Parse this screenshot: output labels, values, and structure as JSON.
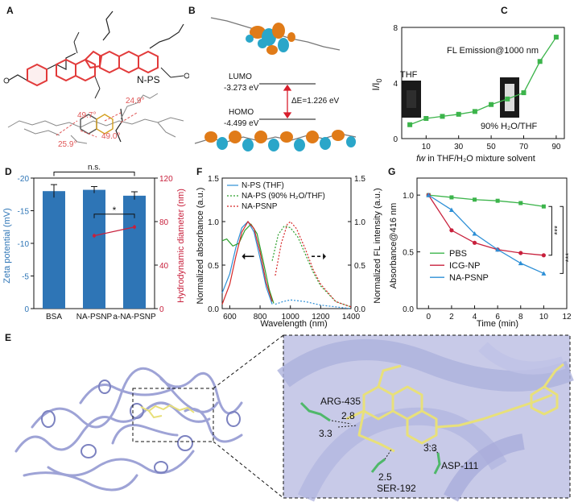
{
  "panels": {
    "A": {
      "letter": "A",
      "molecule_label": "N-PS",
      "angles": [
        "49.7°",
        "24.9°",
        "49.0°",
        "25.9°"
      ],
      "colors": {
        "backbone": "#e23a3a",
        "dihedral": "#e05555"
      }
    },
    "B": {
      "letter": "B",
      "lumo_label": "LUMO",
      "lumo_energy": "-3.273 eV",
      "homo_label": "HOMO",
      "homo_energy": "-4.499 eV",
      "gap_label": "ΔE=1.226 eV",
      "colors": {
        "orbital_a": "#e07b18",
        "orbital_b": "#2aa6c9",
        "gap_arrow": "#d81e2c"
      }
    },
    "C": {
      "letter": "C"
    },
    "D": {
      "letter": "D"
    },
    "E": {
      "letter": "E",
      "residues": [
        "ARG-435",
        "ASP-111",
        "SER-192"
      ],
      "distances": [
        "3.3",
        "2.8",
        "3.3",
        "2.5"
      ],
      "colors": {
        "protein": "#9ea3d6",
        "ligand": "#e8e07a",
        "residue": "#4fb86a"
      }
    },
    "F": {
      "letter": "F"
    },
    "G": {
      "letter": "G"
    }
  },
  "chart_data": [
    {
      "id": "C",
      "type": "line",
      "annotation": "FL Emission@1000 nm",
      "inset_labels": [
        "THF",
        "90% H₂O/THF"
      ],
      "xlabel_parts": [
        "fw",
        " in THF/H₂O mixture solvent"
      ],
      "ylabel_main": "I/I",
      "ylabel_sub": "0",
      "x": [
        0,
        10,
        20,
        30,
        40,
        50,
        60,
        70,
        80,
        90
      ],
      "y": [
        1.0,
        1.45,
        1.6,
        1.75,
        1.95,
        2.45,
        2.85,
        3.3,
        5.55,
        7.3
      ],
      "xticks": [
        10,
        30,
        50,
        70,
        90
      ],
      "yticks": [
        0,
        4,
        8
      ],
      "xlim": [
        -5,
        95
      ],
      "ylim": [
        0,
        8
      ],
      "color": "#3cb44b"
    },
    {
      "id": "D",
      "type": "bar",
      "categories": [
        "BSA",
        "NA-PSNP",
        "a-NA-PSNP"
      ],
      "values": [
        -18.0,
        -18.2,
        -17.3
      ],
      "errors": [
        1.0,
        0.5,
        0.6
      ],
      "ylabel_left": "Zeta potential (mV)",
      "ylim_left": [
        0,
        -20
      ],
      "yticks_left": [
        0,
        -5,
        -10,
        -15,
        -20
      ],
      "ylabel_right": "Hydrodynamic diameter (nm)",
      "ylim_right": [
        0,
        120
      ],
      "yticks_right": [
        0,
        40,
        80,
        120
      ],
      "line_series": {
        "x_categories": [
          "NA-PSNP",
          "a-NA-PSNP"
        ],
        "values": [
          67,
          75
        ],
        "errors": [
          2,
          2
        ]
      },
      "significance": [
        "n.s.",
        "*"
      ],
      "bar_color": "#2e75b6",
      "line_color": "#c8203c"
    },
    {
      "id": "F",
      "type": "line",
      "xlabel": "Wavelength (nm)",
      "ylabel_left": "Normalized absorbance (a.u.)",
      "ylabel_right": "Normalized FL intensity (a.u.)",
      "xlim": [
        550,
        1400
      ],
      "xticks": [
        600,
        800,
        1000,
        1200,
        1400
      ],
      "ylim_left": [
        0,
        1.5
      ],
      "yticks_left": [
        0.0,
        0.5,
        1.0,
        1.5
      ],
      "ylim_right": [
        0,
        1.5
      ],
      "yticks_right": [
        0.0,
        0.5,
        1.0,
        1.5
      ],
      "legend": [
        "N-PS (THF)",
        "NA-PS (90% H₂O/THF)",
        "NA-PSNP"
      ],
      "series": [
        {
          "name": "N-PS (THF)",
          "color": "#2d8fd6",
          "abs_x": [
            550,
            600,
            640,
            680,
            720,
            760,
            800,
            840,
            880
          ],
          "abs_y": [
            0.18,
            0.4,
            0.7,
            0.93,
            1.0,
            0.88,
            0.58,
            0.25,
            0.05
          ],
          "fl_x": [
            900,
            950,
            1000,
            1050,
            1100,
            1150,
            1200,
            1300,
            1400
          ],
          "fl_y": [
            0.05,
            0.08,
            0.1,
            0.09,
            0.08,
            0.06,
            0.04,
            0.02,
            0.0
          ]
        },
        {
          "name": "NA-PS (90% H₂O/THF)",
          "color": "#2ca02c",
          "abs_x": [
            550,
            580,
            620,
            660,
            700,
            740,
            780,
            820,
            860,
            890
          ],
          "abs_y": [
            0.78,
            0.8,
            0.72,
            0.75,
            0.9,
            0.97,
            0.86,
            0.55,
            0.22,
            0.06
          ],
          "fl_x": [
            880,
            920,
            960,
            1000,
            1050,
            1100,
            1150,
            1200,
            1300,
            1400
          ],
          "fl_y": [
            0.55,
            0.85,
            0.95,
            0.93,
            0.82,
            0.62,
            0.42,
            0.26,
            0.08,
            0.02
          ]
        },
        {
          "name": "NA-PSNP",
          "color": "#d62728",
          "abs_x": [
            550,
            600,
            640,
            680,
            720,
            760,
            800,
            840,
            880
          ],
          "abs_y": [
            0.05,
            0.28,
            0.6,
            0.88,
            1.0,
            0.92,
            0.65,
            0.3,
            0.08
          ],
          "fl_x": [
            900,
            940,
            980,
            1000,
            1040,
            1100,
            1150,
            1200,
            1300,
            1400
          ],
          "fl_y": [
            0.38,
            0.75,
            0.97,
            1.0,
            0.92,
            0.68,
            0.45,
            0.28,
            0.08,
            0.02
          ]
        }
      ]
    },
    {
      "id": "G",
      "type": "line",
      "xlabel": "Time (min)",
      "ylabel": "Absorbance@416 nm",
      "xlim": [
        -1,
        12
      ],
      "xticks": [
        0,
        2,
        4,
        6,
        8,
        10,
        12
      ],
      "ylim": [
        0,
        1.0
      ],
      "yticks": [
        0.0,
        0.5,
        1.0
      ],
      "significance": [
        "***",
        "***"
      ],
      "series": [
        {
          "name": "PBS",
          "color": "#3cb44b",
          "marker": "square",
          "x": [
            0,
            2,
            4,
            6,
            8,
            10
          ],
          "y": [
            1.0,
            0.98,
            0.96,
            0.95,
            0.93,
            0.9
          ]
        },
        {
          "name": "ICG-NP",
          "color": "#c8203c",
          "marker": "circle",
          "x": [
            0,
            2,
            4,
            6,
            8,
            10
          ],
          "y": [
            1.0,
            0.69,
            0.58,
            0.52,
            0.49,
            0.47
          ]
        },
        {
          "name": "NA-PSNP",
          "color": "#2d8fd6",
          "marker": "triangle",
          "x": [
            0,
            2,
            4,
            6,
            8,
            10
          ],
          "y": [
            1.0,
            0.87,
            0.66,
            0.52,
            0.4,
            0.31
          ]
        }
      ]
    }
  ]
}
